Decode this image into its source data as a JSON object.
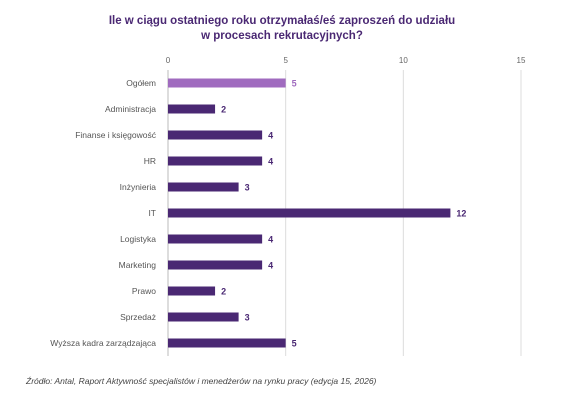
{
  "title_lines": [
    "Ile w ciągu ostatniego roku otrzymałaś/eś zaproszeń do udziału",
    "w procesach rekrutacyjnych?"
  ],
  "source": "Źródło: Antal, Raport Aktywność specjalistów i menedżerów na rynku pracy (edycja 15, 2026)",
  "colors": {
    "highlight": "#a06bbf",
    "bar": "#4a2873",
    "grid": "#dcdcdc",
    "axis_text": "#666666",
    "label_text": "#555555"
  },
  "chart_data": {
    "type": "bar",
    "orientation": "horizontal",
    "title": "Ile w ciągu ostatniego roku otrzymałaś/eś zaproszeń do udziału w procesach rekrutacyjnych?",
    "categories": [
      "Ogółem",
      "Administracja",
      "Finanse i księgowość",
      "HR",
      "Inżynieria",
      "IT",
      "Logistyka",
      "Marketing",
      "Prawo",
      "Sprzedaż",
      "Wyższa kadra zarządzająca"
    ],
    "values": [
      5,
      2,
      4,
      4,
      3,
      12,
      4,
      4,
      2,
      3,
      5
    ],
    "xlim": [
      0,
      15
    ],
    "ticks": [
      0,
      5,
      10,
      15
    ],
    "grid": true,
    "highlight_category": "Ogółem"
  }
}
